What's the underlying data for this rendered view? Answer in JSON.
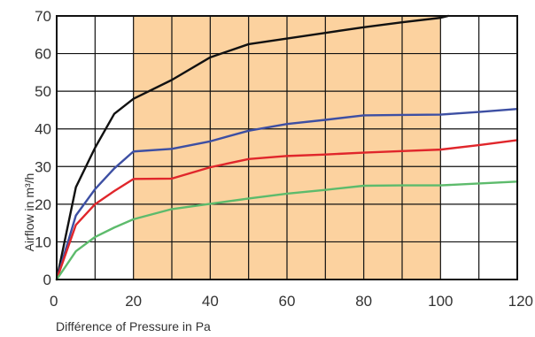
{
  "chart_data": {
    "type": "line",
    "xlabel": "Différence of Pressure in Pa",
    "ylabel": "Airflow in m³/h",
    "xlim": [
      0,
      120
    ],
    "ylim": [
      0,
      70
    ],
    "x_ticks": [
      0,
      20,
      40,
      60,
      80,
      100,
      120
    ],
    "y_ticks": [
      0,
      10,
      20,
      30,
      40,
      50,
      60,
      70
    ],
    "x_gridlines": [
      10,
      20,
      30,
      40,
      50,
      60,
      70,
      80,
      90,
      100,
      110
    ],
    "y_gridlines": [
      10,
      20,
      30,
      40,
      50,
      60
    ],
    "grid": true,
    "highlight_band": {
      "x_range": [
        20,
        100
      ],
      "color": "#fcd29f"
    },
    "series": [
      {
        "color": "#111111",
        "points": [
          [
            0,
            0
          ],
          [
            5,
            24.5
          ],
          [
            10,
            35
          ],
          [
            15,
            44
          ],
          [
            20,
            48
          ],
          [
            30,
            53
          ],
          [
            40,
            59
          ],
          [
            50,
            62.5
          ],
          [
            60,
            64
          ],
          [
            70,
            65.5
          ],
          [
            80,
            67
          ],
          [
            90,
            68.3
          ],
          [
            100,
            69.5
          ],
          [
            102,
            70
          ]
        ]
      },
      {
        "color": "#3d4fa3",
        "points": [
          [
            0,
            0
          ],
          [
            5,
            17
          ],
          [
            10,
            24
          ],
          [
            15,
            29.5
          ],
          [
            20,
            34
          ],
          [
            30,
            34.7
          ],
          [
            40,
            36.7
          ],
          [
            50,
            39.5
          ],
          [
            60,
            41.3
          ],
          [
            70,
            42.4
          ],
          [
            80,
            43.6
          ],
          [
            90,
            43.7
          ],
          [
            100,
            43.8
          ],
          [
            110,
            44.5
          ],
          [
            120,
            45.3
          ]
        ]
      },
      {
        "color": "#e0262b",
        "points": [
          [
            0,
            0
          ],
          [
            5,
            14.5
          ],
          [
            10,
            20
          ],
          [
            15,
            23.5
          ],
          [
            20,
            26.7
          ],
          [
            30,
            26.8
          ],
          [
            40,
            29.8
          ],
          [
            50,
            32
          ],
          [
            60,
            32.8
          ],
          [
            70,
            33.2
          ],
          [
            80,
            33.7
          ],
          [
            90,
            34.1
          ],
          [
            100,
            34.5
          ],
          [
            110,
            35.7
          ],
          [
            120,
            37
          ]
        ]
      },
      {
        "color": "#5dbb6c",
        "points": [
          [
            0,
            0
          ],
          [
            5,
            7.5
          ],
          [
            10,
            11.3
          ],
          [
            15,
            13.8
          ],
          [
            20,
            16
          ],
          [
            30,
            18.7
          ],
          [
            40,
            20.1
          ],
          [
            50,
            21.5
          ],
          [
            60,
            22.8
          ],
          [
            70,
            23.8
          ],
          [
            80,
            24.9
          ],
          [
            90,
            25
          ],
          [
            100,
            25
          ],
          [
            110,
            25.5
          ],
          [
            120,
            26
          ]
        ]
      }
    ]
  }
}
